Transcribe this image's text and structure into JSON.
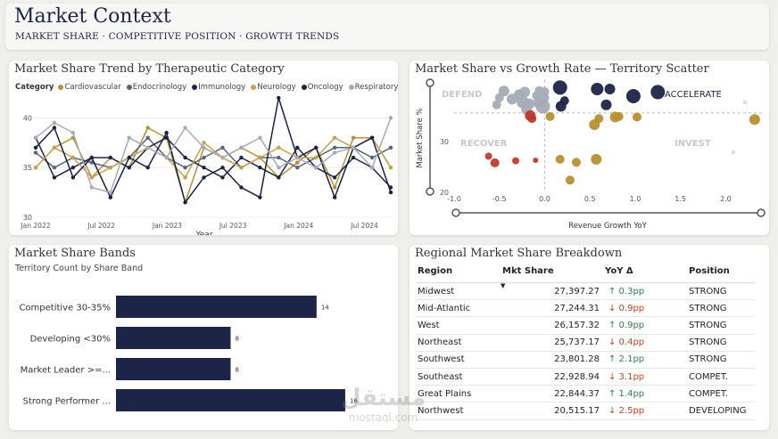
{
  "header": {
    "title": "Market Context",
    "subtitle": "MARKET SHARE · COMPETITIVE POSITION · GROWTH TRENDS"
  },
  "trend": {
    "title": "Market Share Trend by Therapeutic Category",
    "legend_label": "Category",
    "categories": [
      {
        "name": "Cardiovascular",
        "color": "#b8902f"
      },
      {
        "name": "Endocrinology",
        "color": "#5a6378"
      },
      {
        "name": "Immunology",
        "color": "#1c2547"
      },
      {
        "name": "Neurology",
        "color": "#c4a24a"
      },
      {
        "name": "Oncology",
        "color": "#1a2244"
      },
      {
        "name": "Respiratory",
        "color": "#a7abb6"
      }
    ],
    "chart_data": {
      "type": "line",
      "xlabel": "Year",
      "ylabel": "",
      "ylim": [
        30,
        42
      ],
      "yticks": [
        "30",
        "35",
        "40"
      ],
      "xticks": [
        "Jan 2022",
        "Jul 2022",
        "Jan 2023",
        "Jul 2023",
        "Jan 2024",
        "Jul 2024"
      ],
      "series": [
        {
          "name": "Cardiovascular",
          "values": [
            35,
            37,
            38,
            34,
            36,
            35,
            39,
            38,
            31.5,
            37,
            36,
            37,
            36,
            34,
            35.5,
            37,
            33,
            38,
            38,
            35
          ]
        },
        {
          "name": "Endocrinology",
          "values": [
            36.5,
            35,
            36,
            35.5,
            35,
            36,
            38,
            36,
            35,
            36,
            37,
            35,
            36,
            36,
            35,
            36,
            37,
            37,
            36,
            37
          ]
        },
        {
          "name": "Immunology",
          "values": [
            38,
            34,
            35,
            36,
            36,
            35,
            37,
            38,
            36,
            35,
            34,
            36,
            35,
            34,
            37,
            35,
            34,
            36,
            35,
            33
          ]
        },
        {
          "name": "Neurology",
          "values": [
            35,
            37,
            36,
            34,
            35,
            36,
            37,
            36,
            34,
            37.5,
            36,
            35,
            36,
            37,
            36,
            36,
            38,
            37,
            38,
            35
          ]
        },
        {
          "name": "Oncology",
          "values": [
            37,
            39,
            34,
            36,
            32,
            36,
            35,
            38.5,
            31.5,
            34,
            35,
            33,
            32,
            42,
            36,
            37,
            32,
            37,
            38,
            32.5
          ]
        },
        {
          "name": "Respiratory",
          "values": [
            38,
            39.5,
            38.5,
            33,
            32.5,
            38,
            37,
            36,
            39,
            37,
            36,
            37,
            38,
            35,
            36,
            35,
            36.5,
            37,
            35,
            40
          ]
        }
      ]
    }
  },
  "scatter": {
    "title": "Market Share vs Growth Rate — Territory Scatter",
    "quadrants": {
      "top_left": "DEFEND",
      "top_right": "ACCELERATE",
      "bottom_left": "RECOVER",
      "bottom_right": "INVEST"
    },
    "chart_data": {
      "type": "scatter",
      "xlabel": "Revenue Growth YoY",
      "ylabel": "Market Share %",
      "xlim": [
        -1.0,
        2.4
      ],
      "ylim": [
        20,
        41
      ],
      "xticks": [
        "-1.0",
        "-0.5",
        "0.0",
        "0.5",
        "1.0",
        "1.5",
        "2.0"
      ],
      "yticks": [
        "20",
        "30"
      ],
      "series": [
        {
          "name": "Accelerate",
          "color": "#1c2547",
          "points": [
            [
              0.17,
              40.6
            ],
            [
              0.58,
              40.3
            ],
            [
              0.72,
              40.3
            ],
            [
              0.68,
              37.2
            ],
            [
              0.22,
              38.0
            ],
            [
              0.98,
              38.9
            ],
            [
              1.25,
              39.7
            ],
            [
              0.18,
              36.9
            ]
          ]
        },
        {
          "name": "Defend",
          "color": "#a7abb6",
          "points": [
            [
              -0.45,
              39.9
            ],
            [
              -0.22,
              39.7
            ],
            [
              -0.06,
              40.0
            ],
            [
              0.0,
              39.8
            ],
            [
              -0.28,
              39.2
            ],
            [
              -0.09,
              39.0
            ],
            [
              -0.01,
              38.6
            ],
            [
              -0.36,
              38.3
            ],
            [
              -0.24,
              37.7
            ],
            [
              -0.17,
              37.4
            ],
            [
              -0.07,
              37.6
            ],
            [
              -0.02,
              36.9
            ],
            [
              -0.53,
              37.2
            ],
            [
              -0.5,
              38.6
            ],
            [
              -0.2,
              36.3
            ]
          ]
        },
        {
          "name": "Recover",
          "color": "#c0392b",
          "points": [
            [
              -0.16,
              35.1
            ],
            [
              -0.14,
              34.5
            ],
            [
              -0.62,
              27.1
            ],
            [
              -0.55,
              25.8
            ],
            [
              -0.32,
              26.2
            ],
            [
              -0.1,
              26.3
            ]
          ]
        },
        {
          "name": "Invest",
          "color": "#b8902f",
          "points": [
            [
              0.06,
              34.9
            ],
            [
              0.55,
              33.3
            ],
            [
              0.6,
              34.5
            ],
            [
              0.78,
              34.8
            ],
            [
              0.82,
              34.9
            ],
            [
              1.02,
              34.8
            ],
            [
              2.32,
              34.3
            ],
            [
              0.17,
              26.5
            ],
            [
              0.35,
              25.9
            ],
            [
              0.57,
              26.5
            ],
            [
              0.28,
              22.4
            ]
          ]
        }
      ]
    }
  },
  "bands": {
    "title": "Market Share Bands",
    "subtitle": "Territory Count by Share Band",
    "chart_data": {
      "type": "bar",
      "orientation": "horizontal",
      "title": "Territory Count by Share Band",
      "categories": [
        "Competitive 30-35%",
        "Developing <30%",
        "Market Leader >=...",
        "Strong Performer ..."
      ],
      "values": [
        14,
        8,
        8,
        16
      ],
      "xlim": [
        0,
        17
      ]
    }
  },
  "regional": {
    "title": "Regional Market Share Breakdown",
    "columns": [
      "Region",
      "Mkt Share",
      "YoY Δ",
      "Position"
    ],
    "sort_indicator": "▼",
    "rows": [
      {
        "region": "Midwest",
        "share": "27,397.27",
        "yoy": "↑ 0.3pp",
        "dir": "up",
        "position": "STRONG"
      },
      {
        "region": "Mid-Atlantic",
        "share": "27,244.31",
        "yoy": "↓ 0.9pp",
        "dir": "down",
        "position": "STRONG"
      },
      {
        "region": "West",
        "share": "26,157.32",
        "yoy": "↑ 0.9pp",
        "dir": "up",
        "position": "STRONG"
      },
      {
        "region": "Northeast",
        "share": "25,737.17",
        "yoy": "↓ 0.4pp",
        "dir": "down",
        "position": "STRONG"
      },
      {
        "region": "Southwest",
        "share": "23,801.28",
        "yoy": "↑ 2.1pp",
        "dir": "up",
        "position": "STRONG"
      },
      {
        "region": "Southeast",
        "share": "22,928.94",
        "yoy": "↓ 3.1pp",
        "dir": "down",
        "position": "COMPET."
      },
      {
        "region": "Great Plains",
        "share": "22,844.37",
        "yoy": "↑ 1.4pp",
        "dir": "up",
        "position": "COMPET."
      },
      {
        "region": "Northwest",
        "share": "20,515.17",
        "yoy": "↓ 2.5pp",
        "dir": "down",
        "position": "DEVELOPING"
      }
    ]
  },
  "watermark": {
    "arabic": "مستقل",
    "latin": "mostaql.com"
  }
}
